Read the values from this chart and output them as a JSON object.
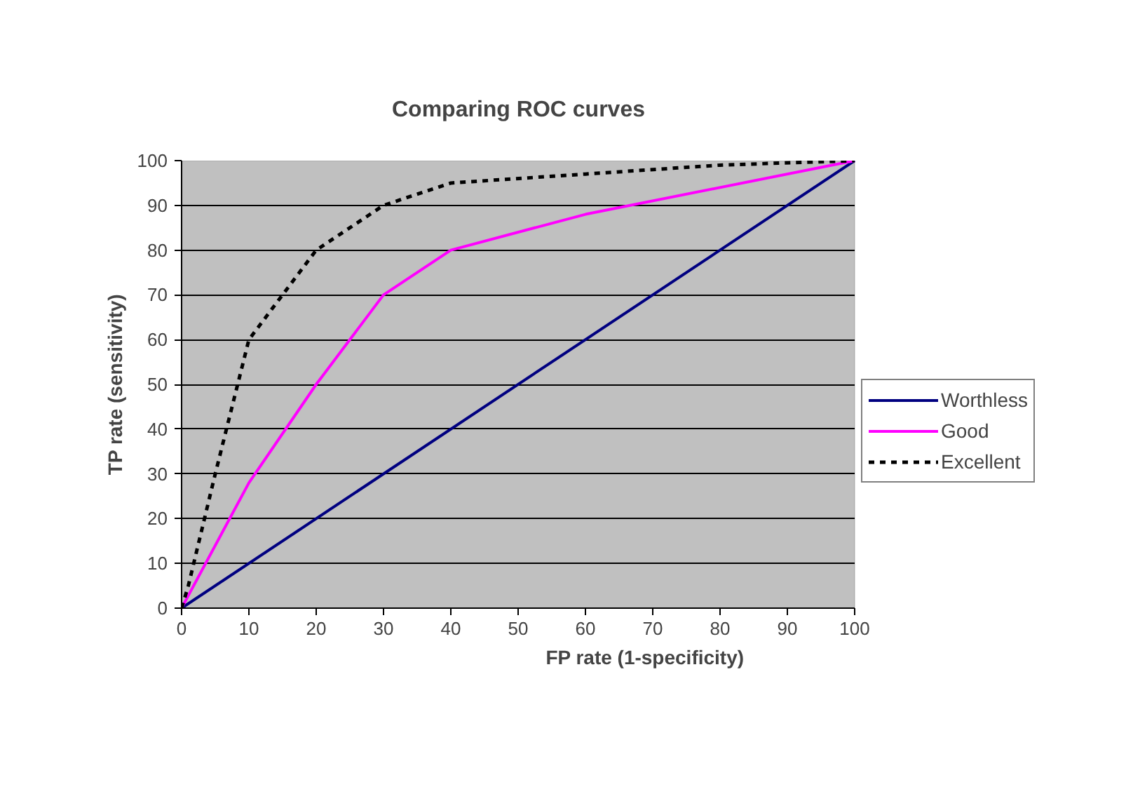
{
  "chart_data": {
    "type": "line",
    "title": "Comparing ROC curves",
    "xlabel": "FP rate (1-specificity)",
    "ylabel": "TP rate (sensitivity)",
    "xlim": [
      0,
      100
    ],
    "ylim": [
      0,
      100
    ],
    "xticks": [
      0,
      10,
      20,
      30,
      40,
      50,
      60,
      70,
      80,
      90,
      100
    ],
    "yticks": [
      0,
      10,
      20,
      30,
      40,
      50,
      60,
      70,
      80,
      90,
      100
    ],
    "grid": "y",
    "legend": "right",
    "marker": "none",
    "series": [
      {
        "name": "Worthless",
        "color": "#000080",
        "line_style": "solid",
        "x": [
          0,
          100
        ],
        "values": [
          0,
          100
        ]
      },
      {
        "name": "Good",
        "color": "#ff00ff",
        "line_style": "solid",
        "x": [
          0,
          10,
          20,
          30,
          40,
          60,
          100
        ],
        "values": [
          0,
          28,
          50,
          70,
          80,
          88,
          100
        ]
      },
      {
        "name": "Excellent",
        "color": "#000000",
        "line_style": "dashed",
        "x": [
          0,
          1,
          5,
          10,
          20,
          30,
          40,
          60,
          80,
          100
        ],
        "values": [
          0,
          5,
          30,
          60,
          80,
          90,
          95,
          97,
          99,
          100
        ]
      }
    ]
  }
}
